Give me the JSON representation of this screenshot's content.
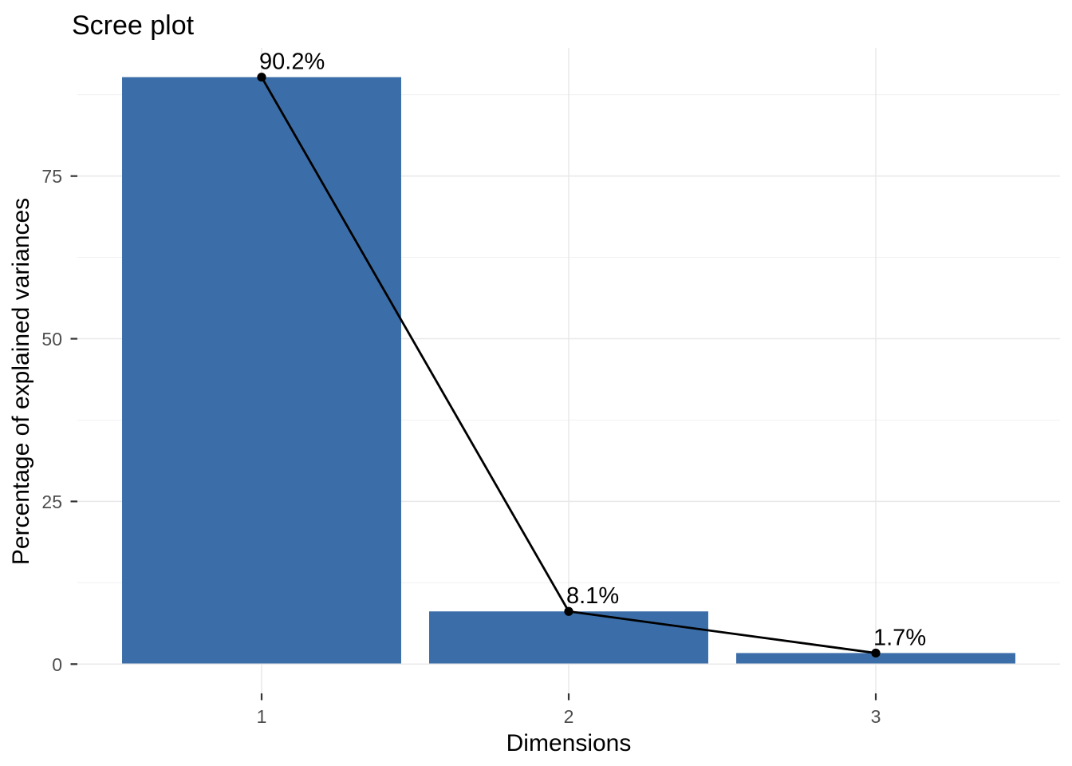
{
  "figure": {
    "background": "#FFFFFF"
  },
  "chart_data": {
    "type": "bar",
    "title": "Scree plot",
    "xlabel": "Dimensions",
    "ylabel": "Percentage of explained variances",
    "categories": [
      "1",
      "2",
      "3"
    ],
    "values": [
      90.2,
      8.1,
      1.7
    ],
    "value_labels": [
      "90.2%",
      "8.1%",
      "1.7%"
    ],
    "overlay_line": {
      "type": "line+points",
      "values": [
        90.2,
        8.1,
        1.7
      ],
      "color": "#000000",
      "point_color": "#000000"
    },
    "ylim": [
      -4.5,
      94.7
    ],
    "yticks": [
      0,
      25,
      50,
      75
    ],
    "ytick_labels": [
      "0",
      "25",
      "50",
      "75"
    ],
    "yticks_minor": [
      12.5,
      37.5,
      62.5,
      87.5
    ],
    "grid": "horizontal major+minor, vertical major at each category",
    "legend": "none",
    "colors": {
      "bar_fill": "#3B6EA8",
      "line": "#000000",
      "point": "#000000",
      "grid_major": "#E8E8E8",
      "grid_minor": "#EFEFEF",
      "tick_mark": "#333333",
      "tick_label": "#4D4D4D",
      "text": "#000000",
      "background": "#FFFFFF"
    }
  }
}
